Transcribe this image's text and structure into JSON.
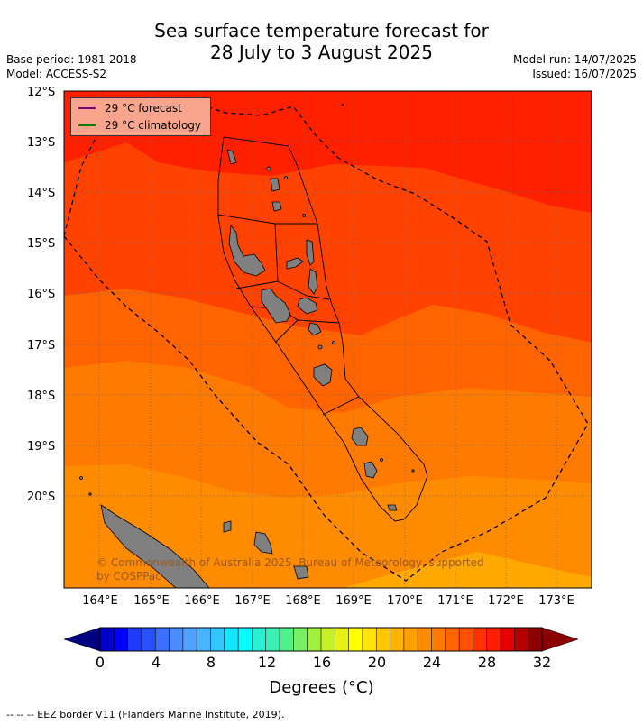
{
  "title_line1": "Sea surface temperature forecast for",
  "title_line2": "28 July to 3 August 2025",
  "base_period": "Base period: 1981-2018",
  "model": "Model: ACCESS-S2",
  "model_run": "Model run: 14/07/2025",
  "issued": "Issued: 16/07/2025",
  "legend": {
    "forecast_label": "29 °C  forecast",
    "forecast_color": "#800080",
    "climatology_label": "29 °C  climatology",
    "climatology_color": "#008000"
  },
  "lat_labels": [
    "12°S",
    "13°S",
    "14°S",
    "15°S",
    "16°S",
    "17°S",
    "18°S",
    "19°S",
    "20°S"
  ],
  "lon_labels": [
    "164°E",
    "165°E",
    "166°E",
    "167°E",
    "168°E",
    "169°E",
    "170°E",
    "171°E",
    "172°E",
    "173°E"
  ],
  "copyright": "© Commonwealth of Australia 2025, Bureau of Meteorology, supported by COSPPac",
  "colorbar": {
    "ticks": [
      "0",
      "4",
      "8",
      "12",
      "16",
      "20",
      "24",
      "28",
      "32"
    ],
    "label": "Degrees (°C)",
    "colors": [
      "#00008b",
      "#0000c8",
      "#0000ff",
      "#1e3cff",
      "#2850ff",
      "#3c6eff",
      "#4b8cff",
      "#50a0ff",
      "#46b4ff",
      "#32c8ff",
      "#14e6ff",
      "#00ffff",
      "#28f0d2",
      "#3cf0b4",
      "#50f08c",
      "#78f064",
      "#a0f03c",
      "#c8f028",
      "#e6f014",
      "#ffff00",
      "#ffe600",
      "#ffc800",
      "#ffb400",
      "#ffa000",
      "#ff8c00",
      "#ff7800",
      "#ff6400",
      "#ff5000",
      "#ff3200",
      "#ff1e00",
      "#e60000",
      "#b40000",
      "#8b0000"
    ],
    "under_color": "#000080",
    "over_color": "#8b0000"
  },
  "footnote": "--  --  -- EEZ border V11 (Flanders Marine Institute, 2019)."
}
